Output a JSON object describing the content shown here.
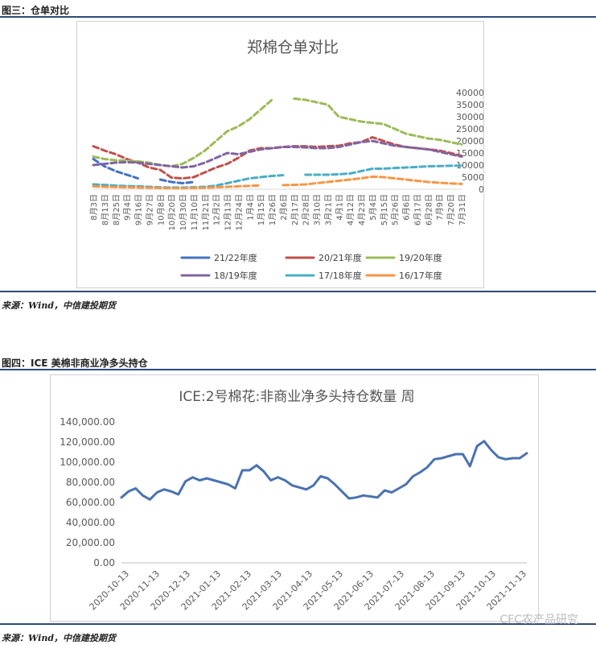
{
  "fig3": {
    "label": "图三：仓单对比",
    "source": "来源：Wind，中信建投期货"
  },
  "fig4": {
    "label": "图四：ICE 美棉非商业净多头持仓",
    "source": "来源：Wind，中信建投期货"
  },
  "watermark": "CFC农产品研究",
  "chart_data": [
    {
      "type": "line",
      "title": "郑棉仓单对比",
      "categories": [
        "8月3日",
        "8月13日",
        "8月25日",
        "9月4日",
        "9月16日",
        "9月27日",
        "10月8日",
        "10月20日",
        "10月30日",
        "11月10日",
        "11月21日",
        "12月2日",
        "12月13日",
        "12月24日",
        "1月4日",
        "1月15日",
        "1月26日",
        "2月6日",
        "2月17日",
        "2月28日",
        "3月10日",
        "3月21日",
        "4月1日",
        "4月12日",
        "4月23日",
        "5月4日",
        "5月15日",
        "5月26日",
        "6月6日",
        "6月17日",
        "6月28日",
        "7月9日",
        "7月20日",
        "7月31日"
      ],
      "ylim": [
        0,
        40000
      ],
      "yticks": [
        "0",
        "5000",
        "10000",
        "15000",
        "20000",
        "25000",
        "30000",
        "35000",
        "40000"
      ],
      "colors": [
        "#4472c4",
        "#c0504d",
        "#9bbb59",
        "#8064a2",
        "#4bacc6",
        "#f79646"
      ],
      "series": [
        {
          "name": "21/22年度",
          "values": [
            12500,
            9500,
            7500,
            6000,
            4500,
            null,
            4000,
            3000,
            2500,
            3000,
            null,
            null,
            null,
            null,
            null,
            null,
            null,
            null,
            null,
            null,
            null,
            null,
            null,
            null,
            null,
            null,
            null,
            null,
            null,
            null,
            null,
            null,
            null,
            null
          ]
        },
        {
          "name": "20/21年度",
          "values": [
            17800,
            16000,
            14500,
            12500,
            11000,
            9000,
            8000,
            4800,
            4500,
            5000,
            7000,
            9000,
            10500,
            13000,
            16000,
            17000,
            17000,
            17500,
            17800,
            17800,
            17500,
            17800,
            18000,
            19000,
            19500,
            21500,
            20000,
            18500,
            17500,
            17000,
            16500,
            16000,
            15000,
            13800
          ]
        },
        {
          "name": "19/20年度",
          "values": [
            13500,
            12500,
            12000,
            11800,
            11500,
            11000,
            10000,
            9500,
            10500,
            13000,
            16000,
            20000,
            24000,
            26000,
            29000,
            33000,
            37000,
            null,
            37500,
            37000,
            36000,
            35000,
            30000,
            29000,
            28000,
            27500,
            27000,
            25000,
            23000,
            22000,
            21000,
            20500,
            19500,
            18500
          ]
        },
        {
          "name": "18/19年度",
          "values": [
            10000,
            10500,
            11000,
            11200,
            11000,
            10500,
            10000,
            9500,
            9000,
            9500,
            11000,
            13000,
            15000,
            14500,
            15500,
            16500,
            17000,
            17500,
            17500,
            17300,
            17000,
            17000,
            17500,
            18500,
            19500,
            20000,
            19000,
            18000,
            17500,
            17000,
            16500,
            15500,
            14500,
            13500
          ]
        },
        {
          "name": "17/18年度",
          "values": [
            2000,
            1800,
            1500,
            1300,
            1200,
            1000,
            800,
            700,
            700,
            800,
            1000,
            1500,
            2500,
            3500,
            4500,
            5000,
            5500,
            5800,
            null,
            6000,
            6000,
            6000,
            6200,
            6500,
            7500,
            8500,
            8500,
            8800,
            9000,
            9200,
            9500,
            9600,
            9700,
            9800
          ]
        },
        {
          "name": "16/17年度",
          "values": [
            1200,
            1000,
            900,
            800,
            700,
            600,
            500,
            400,
            400,
            500,
            600,
            800,
            1000,
            1200,
            1400,
            1600,
            null,
            1700,
            1800,
            2000,
            2500,
            3000,
            3500,
            4000,
            4500,
            5200,
            5000,
            4500,
            4000,
            3500,
            3000,
            2700,
            2400,
            2200
          ]
        }
      ]
    },
    {
      "type": "line",
      "title": "ICE:2号棉花:非商业净多头持仓数量  周",
      "ylim": [
        0,
        140000
      ],
      "yticks": [
        "0.00",
        "20,000.00",
        "40,000.00",
        "60,000.00",
        "80,000.00",
        "100,000.00",
        "120,000.00",
        "140,000.00"
      ],
      "xticks": [
        "2020-10-13",
        "2020-11-13",
        "2020-12-13",
        "2021-01-13",
        "2021-02-13",
        "2021-03-13",
        "2021-04-13",
        "2021-05-13",
        "2021-06-13",
        "2021-07-13",
        "2021-08-13",
        "2021-09-13",
        "2021-10-13",
        "2021-11-13"
      ],
      "color": "#4a72b0",
      "series": [
        {
          "name": "",
          "values": [
            65000,
            71000,
            74000,
            67000,
            63000,
            70000,
            73000,
            71000,
            68000,
            81000,
            85000,
            82000,
            84000,
            82000,
            80000,
            78000,
            74000,
            92000,
            92000,
            97000,
            91000,
            82000,
            85000,
            82000,
            77000,
            75000,
            73000,
            77000,
            86000,
            84000,
            78000,
            71000,
            64000,
            65000,
            67000,
            66000,
            65000,
            72000,
            70000,
            74000,
            78000,
            86000,
            90000,
            95000,
            103000,
            104000,
            106000,
            108000,
            108000,
            96000,
            116000,
            121000,
            112000,
            105000,
            103000,
            104000,
            104000,
            109000
          ]
        }
      ]
    }
  ]
}
